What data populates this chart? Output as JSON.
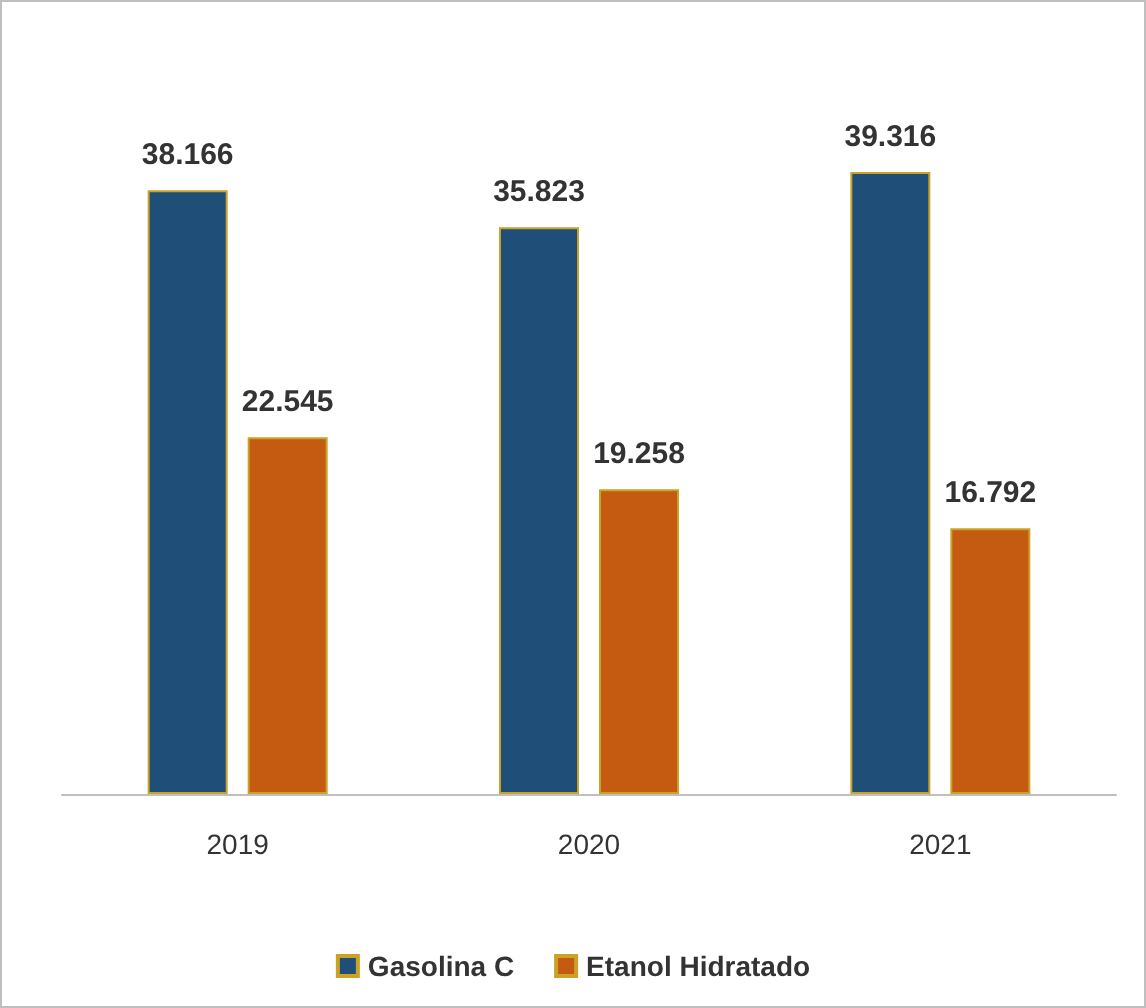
{
  "chart_data": {
    "type": "bar",
    "categories": [
      "2019",
      "2020",
      "2021"
    ],
    "series": [
      {
        "name": "Gasolina C",
        "color": "#1f4e79",
        "values": [
          38166,
          35823,
          39316
        ],
        "value_labels": [
          "38.166",
          "35.823",
          "39.316"
        ]
      },
      {
        "name": "Etanol Hidratado",
        "color": "#c55a11",
        "values": [
          22545,
          19258,
          16792
        ],
        "value_labels": [
          "22.545",
          "19.258",
          "16.792"
        ]
      }
    ],
    "legend": "bottom"
  }
}
